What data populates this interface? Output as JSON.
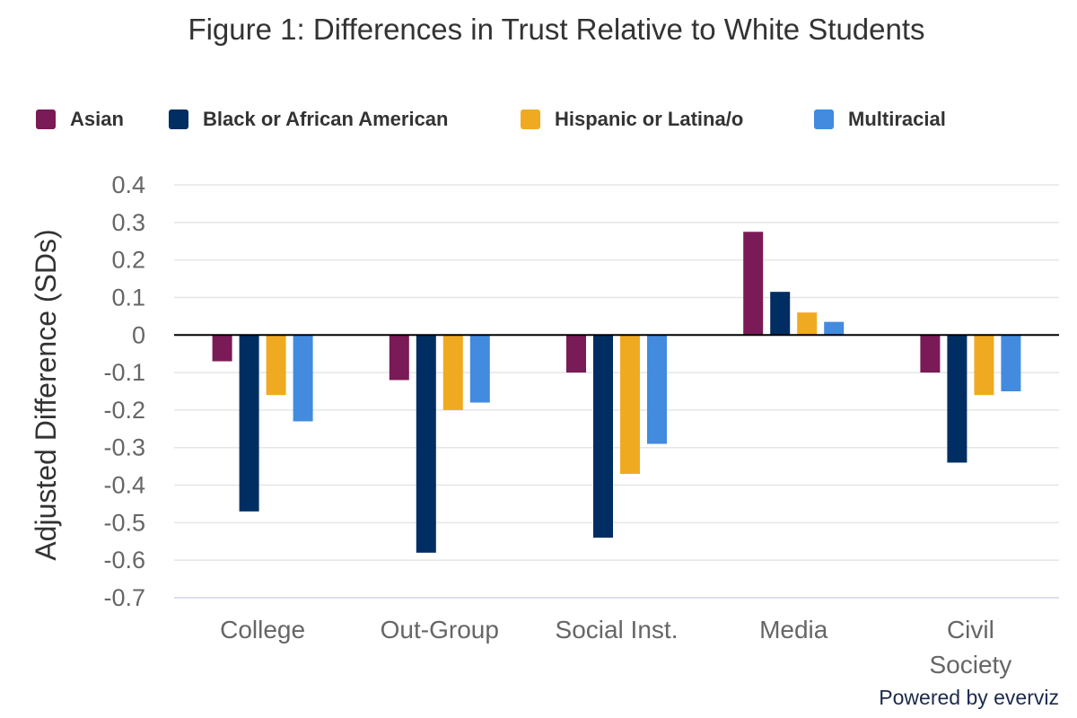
{
  "chart_data": {
    "type": "bar",
    "title": "Figure 1: Differences in Trust Relative to White Students",
    "xlabel": "",
    "ylabel": "Adjusted Difference (SDs)",
    "ylim": [
      -0.7,
      0.4
    ],
    "yticks": [
      0.4,
      0.3,
      0.2,
      0.1,
      0,
      -0.1,
      -0.2,
      -0.3,
      -0.4,
      -0.5,
      -0.6,
      -0.7
    ],
    "ytick_labels": [
      "0.4",
      "0.3",
      "0.2",
      "0.1",
      "0",
      "-0.1",
      "-0.2",
      "-0.3",
      "-0.4",
      "-0.5",
      "-0.6",
      "-0.7"
    ],
    "grid": true,
    "legend_position": "top-left",
    "categories": [
      "College",
      "Out-Group",
      "Social Inst.",
      "Media",
      "Civil Society"
    ],
    "category_label_lines": [
      [
        "College"
      ],
      [
        "Out-Group"
      ],
      [
        "Social Inst."
      ],
      [
        "Media"
      ],
      [
        "Civil",
        "Society"
      ]
    ],
    "series": [
      {
        "name": "Asian",
        "color": "#7a1a56",
        "values": [
          -0.07,
          -0.12,
          -0.1,
          0.275,
          -0.1
        ]
      },
      {
        "name": "Black or African American",
        "color": "#002e62",
        "values": [
          -0.47,
          -0.58,
          -0.54,
          0.115,
          -0.34
        ]
      },
      {
        "name": "Hispanic or Latina/o",
        "color": "#f0aa22",
        "values": [
          -0.16,
          -0.2,
          -0.37,
          0.06,
          -0.16
        ]
      },
      {
        "name": "Multiracial",
        "color": "#428bde",
        "values": [
          -0.23,
          -0.18,
          -0.29,
          0.035,
          -0.15
        ]
      }
    ]
  },
  "credits": "Powered by everviz"
}
